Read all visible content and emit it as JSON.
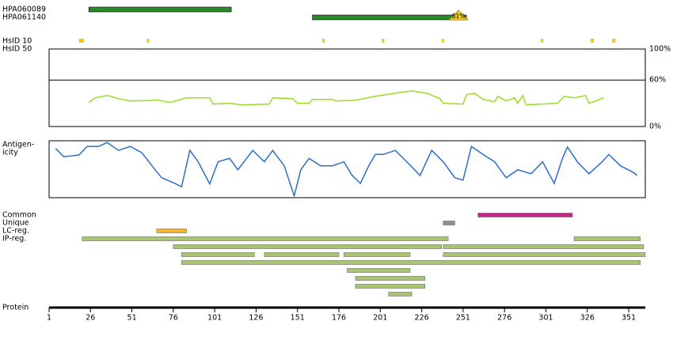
{
  "antibodies": [
    {
      "name": "HPA060089",
      "start": 25,
      "end": 111,
      "color": "#2a8a2a"
    },
    {
      "name": "HPA061140",
      "start": 160,
      "end": 253,
      "color": "#2a8a2a",
      "tag": "81%"
    }
  ],
  "hsid": {
    "labels": [
      "HsID 10",
      "HsID 50"
    ],
    "color": "#f5c518",
    "hits": [
      [
        19,
        22
      ],
      [
        60,
        61
      ],
      [
        166,
        167
      ],
      [
        202,
        203
      ],
      [
        238,
        239
      ],
      [
        298,
        299
      ],
      [
        328,
        330
      ],
      [
        341,
        343
      ]
    ]
  },
  "similarity": {
    "color": "#99dd22",
    "ylim": [
      0,
      100
    ],
    "yticks": [
      {
        "value": 100,
        "label": "100%"
      },
      {
        "value": 60,
        "label": "60%"
      },
      {
        "value": 0,
        "label": "0%"
      }
    ],
    "x": [
      25,
      29,
      36,
      43,
      50,
      67,
      74,
      84,
      98,
      100,
      110,
      117,
      134,
      136,
      148,
      151,
      158,
      160,
      172,
      174,
      186,
      191,
      198,
      210,
      220,
      229,
      237,
      239,
      251,
      253,
      258,
      263,
      270,
      272,
      277,
      282,
      284,
      287,
      289,
      299,
      308,
      312,
      318,
      325,
      327,
      331,
      336
    ],
    "values": [
      31,
      37,
      40,
      36,
      33,
      34,
      31,
      37,
      37,
      29,
      30,
      28,
      29,
      37,
      36,
      30,
      30,
      35,
      35,
      33,
      34,
      36,
      39,
      43,
      46,
      43,
      36,
      30,
      29,
      41,
      43,
      35,
      32,
      39,
      33,
      37,
      30,
      40,
      28,
      29,
      30,
      39,
      37,
      40,
      30,
      33,
      37
    ]
  },
  "antigenicity": {
    "label": [
      "Antigen-",
      "icity"
    ],
    "color": "#2a6fc9",
    "ylim": [
      0,
      100
    ],
    "x": [
      5,
      10,
      19,
      24,
      31,
      36,
      43,
      50,
      57,
      65,
      69,
      77,
      81,
      86,
      91,
      98,
      103,
      110,
      115,
      124,
      131,
      136,
      143,
      149,
      153,
      158,
      165,
      172,
      179,
      184,
      189,
      194,
      198,
      203,
      210,
      217,
      225,
      232,
      239,
      246,
      251,
      256,
      263,
      270,
      277,
      284,
      292,
      299,
      306,
      311,
      314,
      320,
      327,
      335,
      339,
      346,
      354,
      356
    ],
    "values": [
      86,
      72,
      75,
      90,
      90,
      97,
      83,
      90,
      79,
      49,
      35,
      25,
      19,
      83,
      63,
      24,
      63,
      69,
      49,
      83,
      63,
      83,
      56,
      3,
      49,
      69,
      56,
      56,
      63,
      39,
      25,
      56,
      76,
      76,
      83,
      63,
      39,
      83,
      63,
      35,
      31,
      90,
      76,
      63,
      35,
      49,
      42,
      63,
      25,
      69,
      89,
      63,
      42,
      63,
      76,
      56,
      44,
      39
    ]
  },
  "features": [
    {
      "label": "Common",
      "color": "#c0288c",
      "rows": [
        [
          [
            260,
            317
          ]
        ]
      ]
    },
    {
      "label": "Unique",
      "color": "#909090",
      "rows": [
        [
          [
            239,
            246
          ]
        ]
      ]
    },
    {
      "label": "LC-reg.",
      "color": "#f0b830",
      "rows": [
        [
          [
            66,
            84
          ]
        ]
      ]
    },
    {
      "label": "IP-reg.",
      "color": "#a9c475",
      "rows": [
        [
          [
            21,
            242
          ],
          [
            318,
            358
          ]
        ],
        [
          [
            76,
            238
          ],
          [
            239,
            360
          ]
        ],
        [
          [
            81,
            125
          ],
          [
            131,
            176
          ],
          [
            179,
            219
          ],
          [
            239,
            361
          ]
        ],
        [
          [
            81,
            358
          ]
        ],
        [
          [
            181,
            219
          ]
        ],
        [
          [
            186,
            228
          ]
        ],
        [
          [
            186,
            228
          ]
        ],
        [
          [
            206,
            220
          ]
        ]
      ]
    }
  ],
  "protein": {
    "label": "Protein",
    "xlim": [
      1,
      361
    ],
    "xticks": [
      1,
      26,
      51,
      76,
      101,
      126,
      151,
      176,
      201,
      226,
      251,
      276,
      301,
      326,
      351
    ]
  }
}
